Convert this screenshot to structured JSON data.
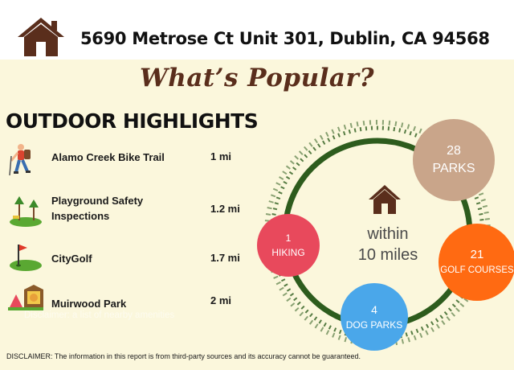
{
  "header": {
    "icon": "house-icon",
    "address": "5690 Metrose Ct Unit 301, Dublin, CA 94568"
  },
  "headline": "What’s Popular?",
  "outdoor": {
    "title": "OUTDOOR HIGHLIGHTS",
    "items": [
      {
        "icon": "hiker-icon",
        "label": "Alamo Creek Bike Trail",
        "distance": "1 mi"
      },
      {
        "icon": "playground-icon",
        "label": "Playground Safety Inspections",
        "distance": "1.2 mi"
      },
      {
        "icon": "golf-flag-icon",
        "label": "CityGolf",
        "distance": "1.7 mi"
      },
      {
        "icon": "park-icon",
        "label": "Muirwood Park",
        "distance": "2 mi"
      }
    ],
    "faded_overlay": "Disclaimer: a list of nearby amenities"
  },
  "summary": {
    "center_icon": "house-icon",
    "center_line1": "within",
    "center_line2": "10 miles",
    "bubbles": [
      {
        "key": "parks",
        "count": "28",
        "label": "PARKS",
        "color": "#c9a58a"
      },
      {
        "key": "golf",
        "count": "21",
        "label": "GOLF COURSES",
        "color": "#ff6a12"
      },
      {
        "key": "dog",
        "count": "4",
        "label": "DOG PARKS",
        "color": "#4aa7ea"
      },
      {
        "key": "hiking",
        "count": "1",
        "label": "HIKING",
        "color": "#e8495c"
      }
    ],
    "ring_color": "#2d5c1d"
  },
  "disclaimer": "DISCLAIMER: The information in this report is from third-party sources and its accuracy cannot be guaranteed."
}
